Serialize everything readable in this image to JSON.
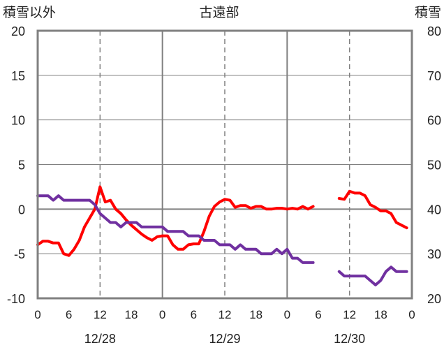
{
  "chart_data": {
    "type": "line",
    "title": "古遠部",
    "ylabel_left": "積雪以外",
    "ylabel_right": "積雪",
    "ylim_left": [
      -10,
      20
    ],
    "ylim_right": [
      20,
      80
    ],
    "yticks_left": [
      "20",
      "15",
      "10",
      "5",
      "0",
      "-5",
      "-10"
    ],
    "yticks_right": [
      "80",
      "70",
      "60",
      "50",
      "40",
      "30",
      "20"
    ],
    "x_range_hours": [
      0,
      72
    ],
    "xtick_labels": [
      "0",
      "6",
      "12",
      "18",
      "0",
      "6",
      "12",
      "18",
      "0",
      "6",
      "12",
      "18",
      "0"
    ],
    "date_labels": [
      "12/28",
      "12/29",
      "12/30"
    ],
    "grid": true,
    "colors": {
      "red_series": "#ff0000",
      "purple_series": "#7030a0",
      "axis": "#808080",
      "grid": "#808080"
    },
    "series": [
      {
        "color": "#ff0000",
        "axis": "left",
        "segments": [
          [
            [
              0,
              -4
            ],
            [
              1,
              -3.6
            ],
            [
              2,
              -3.6
            ],
            [
              3,
              -3.8
            ],
            [
              4,
              -3.8
            ],
            [
              5,
              -5
            ],
            [
              6,
              -5.2
            ],
            [
              7,
              -4.5
            ],
            [
              8,
              -3.5
            ],
            [
              9,
              -2
            ],
            [
              10,
              -1
            ],
            [
              11,
              0
            ],
            [
              12,
              2.5
            ],
            [
              13,
              0.8
            ],
            [
              14,
              1
            ],
            [
              15,
              0
            ],
            [
              16,
              -0.5
            ],
            [
              17,
              -1.2
            ],
            [
              18,
              -1.8
            ],
            [
              19,
              -2.3
            ],
            [
              20,
              -2.8
            ],
            [
              21,
              -3.2
            ],
            [
              22,
              -3.5
            ],
            [
              23,
              -3.1
            ],
            [
              24,
              -3
            ],
            [
              25,
              -3
            ],
            [
              26,
              -4
            ],
            [
              27,
              -4.5
            ],
            [
              28,
              -4.5
            ],
            [
              29,
              -4
            ],
            [
              30,
              -3.9
            ],
            [
              31,
              -3.9
            ],
            [
              32,
              -2.5
            ],
            [
              33,
              -0.8
            ],
            [
              34,
              0.3
            ],
            [
              35,
              0.8
            ],
            [
              36,
              1.1
            ],
            [
              37,
              1
            ],
            [
              38,
              0.2
            ],
            [
              39,
              0.4
            ],
            [
              40,
              0.4
            ],
            [
              41,
              0.1
            ],
            [
              42,
              0.3
            ],
            [
              43,
              0.3
            ],
            [
              44,
              0
            ],
            [
              45,
              0
            ],
            [
              46,
              0.1
            ],
            [
              47,
              0.1
            ],
            [
              48,
              0
            ],
            [
              49,
              0.1
            ],
            [
              50,
              0
            ],
            [
              51,
              0.3
            ],
            [
              52,
              0
            ],
            [
              53,
              0.3
            ]
          ],
          [
            [
              58,
              1.2
            ],
            [
              59,
              1.1
            ],
            [
              60,
              2
            ],
            [
              61,
              1.8
            ],
            [
              62,
              1.8
            ],
            [
              63,
              1.5
            ],
            [
              64,
              0.5
            ],
            [
              65,
              0.2
            ],
            [
              66,
              -0.2
            ],
            [
              67,
              -0.2
            ],
            [
              68,
              -0.5
            ],
            [
              69,
              -1.5
            ],
            [
              70,
              -1.8
            ],
            [
              71,
              -2.1
            ]
          ]
        ]
      },
      {
        "color": "#7030a0",
        "axis": "right",
        "segments": [
          [
            [
              0,
              43
            ],
            [
              1,
              43
            ],
            [
              2,
              43
            ],
            [
              3,
              42
            ],
            [
              4,
              43
            ],
            [
              5,
              42
            ],
            [
              6,
              42
            ],
            [
              7,
              42
            ],
            [
              8,
              42
            ],
            [
              9,
              42
            ],
            [
              10,
              42
            ],
            [
              11,
              41
            ],
            [
              12,
              39
            ],
            [
              13,
              38
            ],
            [
              14,
              37
            ],
            [
              15,
              37
            ],
            [
              16,
              36
            ],
            [
              17,
              37
            ],
            [
              18,
              37
            ],
            [
              19,
              37
            ],
            [
              20,
              36
            ],
            [
              21,
              36
            ],
            [
              22,
              36
            ],
            [
              23,
              36
            ],
            [
              24,
              36
            ],
            [
              25,
              35
            ],
            [
              26,
              35
            ],
            [
              27,
              35
            ],
            [
              28,
              35
            ],
            [
              29,
              34
            ],
            [
              30,
              34
            ],
            [
              31,
              34
            ],
            [
              32,
              33
            ],
            [
              33,
              33
            ],
            [
              34,
              33
            ],
            [
              35,
              32
            ],
            [
              36,
              32
            ],
            [
              37,
              32
            ],
            [
              38,
              31
            ],
            [
              39,
              32
            ],
            [
              40,
              31
            ],
            [
              41,
              31
            ],
            [
              42,
              31
            ],
            [
              43,
              30
            ],
            [
              44,
              30
            ],
            [
              45,
              30
            ],
            [
              46,
              31
            ],
            [
              47,
              30
            ],
            [
              48,
              31
            ],
            [
              49,
              29
            ],
            [
              50,
              29
            ],
            [
              51,
              28
            ],
            [
              52,
              28
            ],
            [
              53,
              28
            ]
          ],
          [
            [
              58,
              26
            ],
            [
              59,
              25
            ],
            [
              60,
              25
            ],
            [
              61,
              25
            ],
            [
              62,
              25
            ],
            [
              63,
              25
            ],
            [
              64,
              24
            ],
            [
              65,
              23
            ],
            [
              66,
              24
            ],
            [
              67,
              26
            ],
            [
              68,
              27
            ],
            [
              69,
              26
            ],
            [
              70,
              26
            ],
            [
              71,
              26
            ]
          ]
        ]
      }
    ]
  }
}
